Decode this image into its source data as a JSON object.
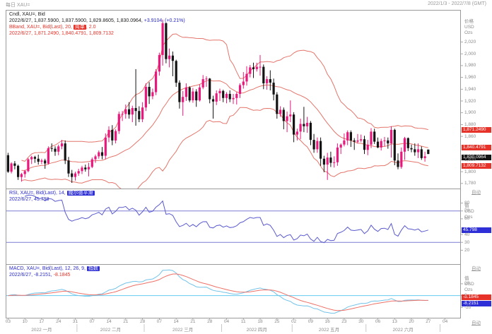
{
  "window": {
    "top_left_label": "每日 XAU=",
    "top_right_label": "2022/1/3 - 2022/7/8 (GMT)"
  },
  "price_panel": {
    "legend_title": "Cndl, XAU=, Bid",
    "legend_ohlc": "2022/6/27, 1,837.5900, 1,837.5900, 1,829.8605, 1,830.0964,",
    "legend_change": "+3.9104, (+0.21%)",
    "bband_prefix": "BBand, XAU=, Bid(Last), 20, ",
    "bband_chip": "简单",
    "bband_suffix": ", 2.0",
    "bband_values": "2022/6/27, 1,871.2490, 1,840.4791, 1,809.7132",
    "unit_1": "价格",
    "unit_2": "USD",
    "unit_3": "Ozs",
    "auto_label": "自动",
    "ticks": [
      "2,020",
      "2,000",
      "1,980",
      "1,960",
      "1,940",
      "1,920",
      "1,900",
      "1,880",
      "1,860",
      "1,820",
      "1,800",
      "1,780"
    ],
    "badge_upper": "1,871.2490",
    "badge_mid": "1,840.4791",
    "badge_last": "1,830.0964",
    "badge_lower": "1,809.7132"
  },
  "rsi_panel": {
    "legend_prefix": "RSI, XAU=, Bid(Last), 14, ",
    "legend_chip": "威尔德平滑",
    "legend_values": "2022/6/27, 45.798",
    "unit_1": "值",
    "unit_2": "USD",
    "unit_3": "Ozs",
    "auto_label": "自动",
    "ticks": [
      "80",
      "70",
      "60",
      "40",
      "30",
      "20"
    ],
    "badge": "45.798"
  },
  "macd_panel": {
    "legend_prefix": "MACD, XAU=, Bid(Last), 12, 26, 9, ",
    "legend_chip": "指数",
    "legend_values_blue": "2022/6/27, -8.2151, ",
    "legend_values_red": "-8.1845",
    "unit_1": "值",
    "unit_2": "USD",
    "unit_3": "Ozs",
    "auto_label": "自动",
    "ticks": [
      "20",
      "0",
      "-20"
    ],
    "badge_signal": "-8.1845",
    "badge_macd": "-8.2151"
  },
  "x_axis": {
    "week_ticks": [
      [
        0,
        "03"
      ],
      [
        5,
        "10"
      ],
      [
        10,
        "17"
      ],
      [
        15,
        "24"
      ],
      [
        20,
        "31"
      ],
      [
        25,
        "07"
      ],
      [
        30,
        "14"
      ],
      [
        35,
        "21"
      ],
      [
        40,
        "28"
      ],
      [
        45,
        "07"
      ],
      [
        50,
        "14"
      ],
      [
        55,
        "21"
      ],
      [
        60,
        "28"
      ],
      [
        65,
        "04"
      ],
      [
        70,
        "11"
      ],
      [
        75,
        "18"
      ],
      [
        80,
        "25"
      ],
      [
        85,
        "02"
      ],
      [
        90,
        "09"
      ],
      [
        95,
        "16"
      ],
      [
        100,
        "23"
      ],
      [
        105,
        "30"
      ],
      [
        110,
        "06"
      ],
      [
        115,
        "13"
      ],
      [
        120,
        "20"
      ],
      [
        125,
        "27"
      ],
      [
        130,
        "04"
      ]
    ],
    "months": [
      [
        0,
        20,
        "2022 一月"
      ],
      [
        21,
        40,
        "2022 二月"
      ],
      [
        41,
        63,
        "2022 三月"
      ],
      [
        64,
        84,
        "2022 四月"
      ],
      [
        85,
        106,
        "2022 五月"
      ],
      [
        107,
        128,
        "2022 六月"
      ]
    ]
  },
  "colors": {
    "up": "#e8187c",
    "down": "#141414",
    "bollinger": "#e4756b",
    "rsi_line": "#5a5ace",
    "rsi_levels": "#7d7dd2",
    "macd_line": "#74c3e8",
    "macd_signal": "#ee7168",
    "zero_line": "#63cbee",
    "badge_red": "#e63229",
    "badge_blue": "#2f2fd8",
    "badge_black": "#141414",
    "frame": "#9a9a9a",
    "axis_text": "#8a8a8a"
  },
  "chart_data": {
    "type": "candlestick",
    "symbol": "XAU=",
    "interval": "每日",
    "date_range": "2022/1/3 - 2022/7/8 (GMT)",
    "year": 2022,
    "ylim": [
      1775,
      2065
    ],
    "last_price": 1830.0964,
    "bollinger": {
      "period": 20,
      "ma_type": "简单",
      "width": 2.0,
      "last": {
        "upper": 1871.249,
        "middle": 1840.4791,
        "lower": 1809.7132
      }
    },
    "rsi": {
      "period": 14,
      "smoothing": "威尔德平滑",
      "last": 45.798,
      "overbought": 70,
      "oversold": 30,
      "range": [
        5,
        95
      ]
    },
    "macd": {
      "fast": 12,
      "slow": 26,
      "signal": 9,
      "ma_type": "指数",
      "last_macd": -8.2151,
      "last_signal": -8.1845
    },
    "axis_slots": 135,
    "candles": [
      [
        "01-03",
        1828,
        1832,
        1798,
        1800
      ],
      [
        "01-04",
        1800,
        1816,
        1797,
        1814
      ],
      [
        "01-05",
        1814,
        1818,
        1804,
        1810
      ],
      [
        "01-06",
        1810,
        1812,
        1786,
        1791
      ],
      [
        "01-07",
        1791,
        1798,
        1783,
        1796
      ],
      [
        "01-10",
        1796,
        1803,
        1790,
        1801
      ],
      [
        "01-11",
        1801,
        1823,
        1799,
        1821
      ],
      [
        "01-12",
        1821,
        1827,
        1813,
        1825
      ],
      [
        "01-13",
        1825,
        1827,
        1815,
        1822
      ],
      [
        "01-14",
        1822,
        1829,
        1812,
        1817
      ],
      [
        "01-17",
        1817,
        1822,
        1813,
        1819
      ],
      [
        "01-18",
        1819,
        1822,
        1805,
        1814
      ],
      [
        "01-19",
        1814,
        1843,
        1812,
        1840
      ],
      [
        "01-20",
        1840,
        1848,
        1834,
        1839
      ],
      [
        "01-21",
        1839,
        1843,
        1827,
        1834
      ],
      [
        "01-24",
        1834,
        1846,
        1828,
        1843
      ],
      [
        "01-25",
        1843,
        1854,
        1838,
        1848
      ],
      [
        "01-26",
        1848,
        1853,
        1813,
        1819
      ],
      [
        "01-27",
        1819,
        1825,
        1791,
        1797
      ],
      [
        "01-28",
        1797,
        1803,
        1781,
        1791
      ],
      [
        "01-31",
        1791,
        1800,
        1785,
        1797
      ],
      [
        "02-01",
        1797,
        1805,
        1793,
        1801
      ],
      [
        "02-02",
        1801,
        1810,
        1796,
        1807
      ],
      [
        "02-03",
        1807,
        1812,
        1800,
        1804
      ],
      [
        "02-04",
        1804,
        1815,
        1792,
        1808
      ],
      [
        "02-07",
        1808,
        1824,
        1806,
        1821
      ],
      [
        "02-08",
        1821,
        1829,
        1815,
        1826
      ],
      [
        "02-09",
        1826,
        1836,
        1822,
        1833
      ],
      [
        "02-10",
        1833,
        1842,
        1821,
        1827
      ],
      [
        "02-11",
        1827,
        1865,
        1821,
        1858
      ],
      [
        "02-14",
        1858,
        1877,
        1850,
        1871
      ],
      [
        "02-15",
        1871,
        1879,
        1845,
        1853
      ],
      [
        "02-16",
        1853,
        1872,
        1848,
        1869
      ],
      [
        "02-17",
        1869,
        1902,
        1864,
        1898
      ],
      [
        "02-18",
        1898,
        1903,
        1886,
        1898
      ],
      [
        "02-21",
        1898,
        1914,
        1890,
        1906
      ],
      [
        "02-22",
        1906,
        1918,
        1890,
        1897
      ],
      [
        "02-23",
        1897,
        1912,
        1884,
        1908
      ],
      [
        "02-24",
        1908,
        1974,
        1878,
        1903
      ],
      [
        "02-25",
        1903,
        1911,
        1884,
        1889
      ],
      [
        "02-28",
        1889,
        1918,
        1884,
        1909
      ],
      [
        "03-01",
        1909,
        1950,
        1903,
        1944
      ],
      [
        "03-02",
        1944,
        1952,
        1915,
        1928
      ],
      [
        "03-03",
        1928,
        1941,
        1923,
        1935
      ],
      [
        "03-04",
        1935,
        1974,
        1930,
        1970
      ],
      [
        "03-07",
        1970,
        2002,
        1963,
        1998
      ],
      [
        "03-08",
        1998,
        2058,
        1980,
        2052
      ],
      [
        "03-09",
        2052,
        2053,
        1984,
        1991
      ],
      [
        "03-10",
        1991,
        2009,
        1977,
        1997
      ],
      [
        "03-11",
        1997,
        2004,
        1962,
        1988
      ],
      [
        "03-14",
        1988,
        1990,
        1944,
        1951
      ],
      [
        "03-15",
        1951,
        1955,
        1907,
        1918
      ],
      [
        "03-16",
        1918,
        1937,
        1895,
        1927
      ],
      [
        "03-17",
        1927,
        1950,
        1920,
        1943
      ],
      [
        "03-18",
        1943,
        1945,
        1918,
        1921
      ],
      [
        "03-21",
        1921,
        1942,
        1917,
        1936
      ],
      [
        "03-22",
        1936,
        1940,
        1910,
        1921
      ],
      [
        "03-23",
        1921,
        1948,
        1919,
        1943
      ],
      [
        "03-24",
        1943,
        1964,
        1940,
        1957
      ],
      [
        "03-25",
        1957,
        1962,
        1944,
        1958
      ],
      [
        "03-28",
        1958,
        1959,
        1916,
        1923
      ],
      [
        "03-29",
        1923,
        1929,
        1890,
        1919
      ],
      [
        "03-30",
        1919,
        1938,
        1913,
        1933
      ],
      [
        "03-31",
        1933,
        1941,
        1920,
        1937
      ],
      [
        "04-01",
        1937,
        1939,
        1918,
        1925
      ],
      [
        "04-04",
        1925,
        1935,
        1916,
        1932
      ],
      [
        "04-05",
        1932,
        1938,
        1918,
        1923
      ],
      [
        "04-06",
        1923,
        1932,
        1915,
        1925
      ],
      [
        "04-07",
        1925,
        1935,
        1914,
        1932
      ],
      [
        "04-08",
        1932,
        1950,
        1925,
        1947
      ],
      [
        "04-11",
        1947,
        1969,
        1941,
        1953
      ],
      [
        "04-12",
        1953,
        1979,
        1946,
        1966
      ],
      [
        "04-13",
        1966,
        1981,
        1960,
        1977
      ],
      [
        "04-14",
        1977,
        1985,
        1959,
        1974
      ],
      [
        "04-15",
        1974,
        1985,
        1970,
        1978
      ],
      [
        "04-18",
        1978,
        1998,
        1963,
        1978
      ],
      [
        "04-19",
        1978,
        1982,
        1940,
        1950
      ],
      [
        "04-20",
        1950,
        1962,
        1939,
        1957
      ],
      [
        "04-21",
        1957,
        1972,
        1938,
        1951
      ],
      [
        "04-22",
        1951,
        1958,
        1921,
        1931
      ],
      [
        "04-25",
        1931,
        1935,
        1890,
        1898
      ],
      [
        "04-26",
        1898,
        1911,
        1893,
        1905
      ],
      [
        "04-27",
        1905,
        1909,
        1872,
        1886
      ],
      [
        "04-28",
        1886,
        1902,
        1867,
        1894
      ],
      [
        "04-29",
        1894,
        1921,
        1884,
        1897
      ],
      [
        "05-02",
        1897,
        1901,
        1850,
        1863
      ],
      [
        "05-03",
        1863,
        1873,
        1853,
        1868
      ],
      [
        "05-04",
        1868,
        1890,
        1855,
        1881
      ],
      [
        "05-05",
        1881,
        1910,
        1867,
        1877
      ],
      [
        "05-06",
        1877,
        1893,
        1866,
        1883
      ],
      [
        "05-09",
        1883,
        1886,
        1845,
        1854
      ],
      [
        "05-10",
        1854,
        1864,
        1832,
        1838
      ],
      [
        "05-11",
        1838,
        1858,
        1832,
        1852
      ],
      [
        "05-12",
        1852,
        1858,
        1810,
        1822
      ],
      [
        "05-13",
        1822,
        1827,
        1799,
        1812
      ],
      [
        "05-16",
        1812,
        1832,
        1786,
        1824
      ],
      [
        "05-17",
        1824,
        1834,
        1808,
        1815
      ],
      [
        "05-18",
        1815,
        1826,
        1807,
        1816
      ],
      [
        "05-19",
        1816,
        1848,
        1810,
        1841
      ],
      [
        "05-20",
        1841,
        1848,
        1830,
        1846
      ],
      [
        "05-23",
        1846,
        1865,
        1843,
        1853
      ],
      [
        "05-24",
        1853,
        1870,
        1845,
        1867
      ],
      [
        "05-25",
        1867,
        1870,
        1842,
        1853
      ],
      [
        "05-26",
        1853,
        1857,
        1837,
        1851
      ],
      [
        "05-27",
        1851,
        1864,
        1848,
        1853
      ],
      [
        "05-30",
        1853,
        1863,
        1850,
        1855
      ],
      [
        "05-31",
        1855,
        1861,
        1830,
        1837
      ],
      [
        "06-01",
        1837,
        1854,
        1828,
        1846
      ],
      [
        "06-02",
        1846,
        1874,
        1840,
        1868
      ],
      [
        "06-03",
        1868,
        1873,
        1847,
        1851
      ],
      [
        "06-06",
        1851,
        1858,
        1840,
        1841
      ],
      [
        "06-07",
        1841,
        1856,
        1836,
        1852
      ],
      [
        "06-08",
        1852,
        1859,
        1843,
        1853
      ],
      [
        "06-09",
        1853,
        1858,
        1839,
        1848
      ],
      [
        "06-10",
        1848,
        1877,
        1824,
        1871
      ],
      [
        "06-13",
        1871,
        1873,
        1811,
        1819
      ],
      [
        "06-14",
        1819,
        1831,
        1804,
        1808
      ],
      [
        "06-15",
        1808,
        1841,
        1805,
        1834
      ],
      [
        "06-16",
        1834,
        1859,
        1820,
        1857
      ],
      [
        "06-17",
        1857,
        1858,
        1835,
        1840
      ],
      [
        "06-20",
        1840,
        1846,
        1833,
        1838
      ],
      [
        "06-21",
        1838,
        1848,
        1827,
        1833
      ],
      [
        "06-22",
        1833,
        1848,
        1823,
        1838
      ],
      [
        "06-23",
        1838,
        1843,
        1820,
        1823
      ],
      [
        "06-24",
        1823,
        1834,
        1817,
        1826.2
      ],
      [
        "06-27",
        1837.6,
        1837.6,
        1829.9,
        1830.1
      ]
    ]
  }
}
